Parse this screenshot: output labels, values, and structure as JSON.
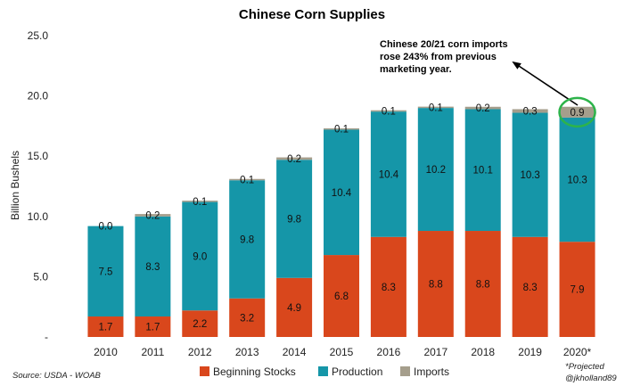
{
  "chart_data": {
    "type": "bar",
    "stacked": true,
    "title": "Chinese Corn Supplies",
    "ylabel": "Billion Bushels",
    "xlabel": "",
    "ylim": [
      0,
      25
    ],
    "yticks": [
      0,
      5,
      10,
      15,
      20,
      25
    ],
    "ytick_labels": [
      "-",
      "5.0",
      "10.0",
      "15.0",
      "20.0",
      "25.0"
    ],
    "categories": [
      "2010",
      "2011",
      "2012",
      "2013",
      "2014",
      "2015",
      "2016",
      "2017",
      "2018",
      "2019",
      "2020*"
    ],
    "series": [
      {
        "name": "Beginning Stocks",
        "color": "#d9471c",
        "values": [
          1.7,
          1.7,
          2.2,
          3.2,
          4.9,
          6.8,
          8.3,
          8.8,
          8.8,
          8.3,
          7.9
        ],
        "labels": [
          "1.7",
          "1.7",
          "2.2",
          "3.2",
          "4.9",
          "6.8",
          "8.3",
          "8.8",
          "8.8",
          "8.3",
          "7.9"
        ]
      },
      {
        "name": "Production",
        "color": "#1596a8",
        "values": [
          7.5,
          8.3,
          9.0,
          9.8,
          9.8,
          10.4,
          10.4,
          10.2,
          10.1,
          10.3,
          10.3
        ],
        "labels": [
          "7.5",
          "8.3",
          "9.0",
          "9.8",
          "9.8",
          "10.4",
          "10.4",
          "10.2",
          "10.1",
          "10.3",
          "10.3"
        ]
      },
      {
        "name": "Imports",
        "color": "#a59e8c",
        "values": [
          0.0,
          0.2,
          0.1,
          0.1,
          0.2,
          0.1,
          0.1,
          0.1,
          0.2,
          0.3,
          0.9
        ],
        "labels": [
          "0.0",
          "0.2",
          "0.1",
          "0.1",
          "0.2",
          "0.1",
          "0.1",
          "0.1",
          "0.2",
          "0.3",
          "0.9"
        ]
      }
    ],
    "legend_position": "bottom",
    "grid": false,
    "annotation": {
      "lines": [
        "Chinese 20/21 corn imports",
        "rose 243% from previous",
        "marketing year."
      ],
      "highlight_category": "2020*",
      "highlight_color": "#2db34a"
    },
    "source": "Source: USDA - WOAB",
    "footnote": [
      "*Projected",
      "@jkholland89"
    ]
  }
}
